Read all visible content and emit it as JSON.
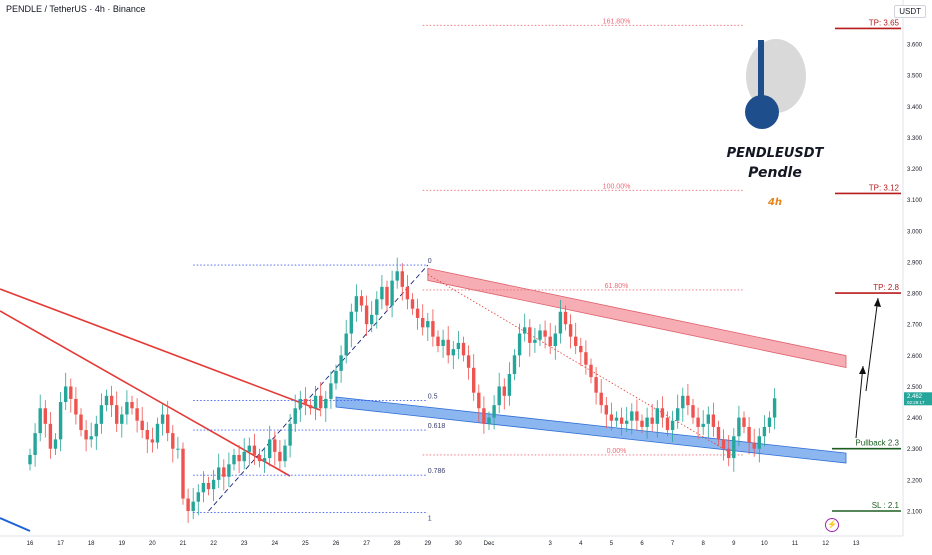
{
  "header": {
    "symbol_line": "PENDLE / TetherUS · 4h · Binance",
    "currency": "USDT"
  },
  "branding": {
    "title": "PENDLEUSDT",
    "name": "Pendle",
    "timeframe": "4h",
    "logo_colors": {
      "light": "#d9d9d9",
      "dark": "#1f4e8c"
    }
  },
  "colors": {
    "up": "#26a69a",
    "down": "#ef5350",
    "channel_top": "#f28b94",
    "channel_bottom": "#4f8fe6",
    "trendline": "#e53935",
    "fib": "#f06a78",
    "fib_lower": "#3d5af1",
    "target": "#b71c1c",
    "support": "#1b5e20"
  },
  "chart_data": {
    "type": "candlestick",
    "pair": "PENDLE / TetherUS",
    "interval": "4h",
    "exchange": "Binance",
    "y_axis": {
      "ticks": [
        "3.600",
        "3.500",
        "3.400",
        "3.300",
        "3.200",
        "3.100",
        "3.000",
        "2.900",
        "2.800",
        "2.700",
        "2.600",
        "2.500",
        "2.400",
        "2.300",
        "2.200",
        "2.100"
      ],
      "range": [
        2.065,
        3.705
      ]
    },
    "x_axis": {
      "ticks": [
        {
          "label": "16",
          "i": 0
        },
        {
          "label": "17",
          "i": 6
        },
        {
          "label": "18",
          "i": 12
        },
        {
          "label": "19",
          "i": 18
        },
        {
          "label": "20",
          "i": 24
        },
        {
          "label": "21",
          "i": 30
        },
        {
          "label": "22",
          "i": 36
        },
        {
          "label": "23",
          "i": 42
        },
        {
          "label": "24",
          "i": 48
        },
        {
          "label": "25",
          "i": 54
        },
        {
          "label": "26",
          "i": 60
        },
        {
          "label": "27",
          "i": 66
        },
        {
          "label": "28",
          "i": 72
        },
        {
          "label": "29",
          "i": 78
        },
        {
          "label": "30",
          "i": 84
        },
        {
          "label": "Dec",
          "i": 90
        },
        {
          "label": "3",
          "i": 102
        },
        {
          "label": "4",
          "i": 108
        },
        {
          "label": "5",
          "i": 114
        },
        {
          "label": "6",
          "i": 120
        },
        {
          "label": "7",
          "i": 126
        },
        {
          "label": "8",
          "i": 132
        },
        {
          "label": "9",
          "i": 138
        },
        {
          "label": "10",
          "i": 144
        },
        {
          "label": "11",
          "i": 150
        },
        {
          "label": "12",
          "i": 156
        },
        {
          "label": "13",
          "i": 162
        }
      ]
    },
    "closes": [
      2.28,
      2.35,
      2.43,
      2.38,
      2.3,
      2.33,
      2.45,
      2.5,
      2.46,
      2.41,
      2.36,
      2.33,
      2.34,
      2.38,
      2.44,
      2.47,
      2.44,
      2.38,
      2.41,
      2.45,
      2.43,
      2.39,
      2.36,
      2.33,
      2.32,
      2.38,
      2.41,
      2.35,
      2.3,
      2.3,
      2.14,
      2.1,
      2.13,
      2.16,
      2.19,
      2.17,
      2.2,
      2.24,
      2.21,
      2.25,
      2.28,
      2.26,
      2.29,
      2.31,
      2.28,
      2.26,
      2.27,
      2.33,
      2.29,
      2.26,
      2.31,
      2.38,
      2.43,
      2.46,
      2.44,
      2.43,
      2.47,
      2.43,
      2.46,
      2.51,
      2.55,
      2.6,
      2.67,
      2.74,
      2.79,
      2.76,
      2.7,
      2.73,
      2.78,
      2.82,
      2.76,
      2.84,
      2.87,
      2.82,
      2.78,
      2.75,
      2.72,
      2.69,
      2.71,
      2.66,
      2.63,
      2.65,
      2.6,
      2.62,
      2.64,
      2.6,
      2.56,
      2.48,
      2.43,
      2.38,
      2.4,
      2.44,
      2.5,
      2.47,
      2.54,
      2.6,
      2.67,
      2.69,
      2.64,
      2.65,
      2.68,
      2.66,
      2.63,
      2.67,
      2.74,
      2.7,
      2.66,
      2.63,
      2.61,
      2.57,
      2.53,
      2.48,
      2.44,
      2.41,
      2.39,
      2.4,
      2.38,
      2.39,
      2.42,
      2.39,
      2.37,
      2.4,
      2.38,
      2.43,
      2.4,
      2.36,
      2.39,
      2.43,
      2.47,
      2.44,
      2.4,
      2.37,
      2.38,
      2.41,
      2.37,
      2.33,
      2.3,
      2.27,
      2.34,
      2.4,
      2.37,
      2.32,
      2.3,
      2.34,
      2.37,
      2.4,
      2.462
    ],
    "lowest_low": 2.095,
    "highest_high": 2.898,
    "current_price": "2.462",
    "current_timer": "02:29:17",
    "fibonacci": {
      "levels": [
        {
          "label": "161.80%",
          "price": 3.66
        },
        {
          "label": "100.00%",
          "price": 3.13
        },
        {
          "label": "61.80%",
          "price": 2.81
        },
        {
          "label": "0.00%",
          "price": 2.28
        }
      ],
      "retracement": [
        {
          "label": "0",
          "price": 2.89
        },
        {
          "label": "0.5",
          "price": 2.455
        },
        {
          "label": "0.618",
          "price": 2.36
        },
        {
          "label": "0.786",
          "price": 2.215
        },
        {
          "label": "1",
          "price": 2.095
        }
      ]
    },
    "annotations": [
      {
        "label": "TP: 3.65",
        "price": 3.65
      },
      {
        "label": "TP: 3.12",
        "price": 3.12
      },
      {
        "label": "TP: 2.8",
        "price": 2.8
      },
      {
        "label": "Pullback 2.3",
        "price": 2.3
      },
      {
        "label": "SL : 2.1",
        "price": 2.1
      }
    ],
    "channel": {
      "upper": {
        "from": {
          "i": 78,
          "price": 2.86
        },
        "to": {
          "i": 160,
          "price": 2.58
        }
      },
      "lower": {
        "from": {
          "i": 60,
          "price": 2.45
        },
        "to": {
          "i": 160,
          "price": 2.27
        }
      }
    }
  }
}
